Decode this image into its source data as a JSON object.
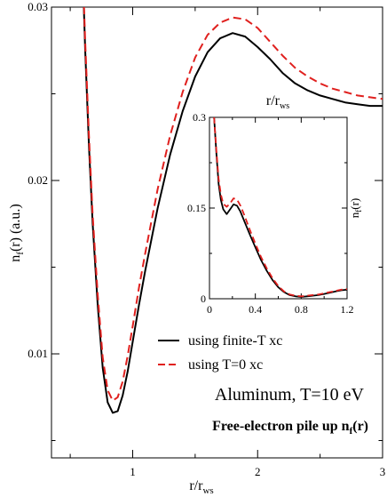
{
  "chart_data": [
    {
      "type": "line",
      "panel": "main",
      "xlabel": "r/r",
      "xlabel_sub": "ws",
      "ylabel": "n",
      "ylabel_sub": "f",
      "ylabel_rest": "(r) (a.u.)",
      "xlim": [
        0.35,
        3.0
      ],
      "ylim": [
        0.004,
        0.03
      ],
      "xticks": [
        1,
        2,
        3
      ],
      "xtick_labels": [
        "1",
        "2",
        "3"
      ],
      "yticks": [
        0.01,
        0.02,
        0.03
      ],
      "ytick_labels": [
        "0.01",
        "0.02",
        "0.03"
      ],
      "grid": false,
      "legend_position": "bottom-right",
      "series": [
        {
          "name": "using finite-T xc",
          "color": "#000000",
          "dash": "solid",
          "x": [
            0.6,
            0.62,
            0.65,
            0.68,
            0.72,
            0.76,
            0.8,
            0.84,
            0.88,
            0.92,
            0.96,
            1.0,
            1.05,
            1.1,
            1.2,
            1.3,
            1.4,
            1.5,
            1.6,
            1.7,
            1.8,
            1.9,
            2.0,
            2.1,
            2.2,
            2.3,
            2.4,
            2.5,
            2.6,
            2.7,
            2.8,
            2.9,
            3.0
          ],
          "y": [
            0.032,
            0.0275,
            0.022,
            0.0175,
            0.0128,
            0.0092,
            0.0072,
            0.0066,
            0.0067,
            0.0076,
            0.009,
            0.0107,
            0.0128,
            0.0148,
            0.0184,
            0.0215,
            0.024,
            0.026,
            0.0274,
            0.0282,
            0.0285,
            0.0283,
            0.0277,
            0.027,
            0.0262,
            0.0256,
            0.0252,
            0.0249,
            0.0247,
            0.0245,
            0.0244,
            0.0243,
            0.0243
          ]
        },
        {
          "name": "using T=0 xc",
          "color": "#e0201e",
          "dash": "dashed",
          "x": [
            0.6,
            0.62,
            0.65,
            0.68,
            0.72,
            0.76,
            0.8,
            0.84,
            0.88,
            0.92,
            0.96,
            1.0,
            1.05,
            1.1,
            1.2,
            1.3,
            1.4,
            1.5,
            1.6,
            1.7,
            1.8,
            1.9,
            2.0,
            2.1,
            2.2,
            2.3,
            2.4,
            2.5,
            2.6,
            2.7,
            2.8,
            2.9,
            3.0
          ],
          "y": [
            0.0322,
            0.028,
            0.0226,
            0.018,
            0.0134,
            0.0098,
            0.0079,
            0.0073,
            0.0075,
            0.0084,
            0.0099,
            0.0116,
            0.0138,
            0.0158,
            0.0195,
            0.0226,
            0.0251,
            0.0271,
            0.0284,
            0.0291,
            0.0294,
            0.0293,
            0.0288,
            0.028,
            0.0272,
            0.0265,
            0.026,
            0.0256,
            0.0253,
            0.0251,
            0.0249,
            0.0248,
            0.0247
          ]
        }
      ],
      "annotations": {
        "material": "Aluminum,  T=10 eV",
        "caption_main": "Free-electron pile up n",
        "caption_sub": "f",
        "caption_rest": "(r)"
      }
    },
    {
      "type": "line",
      "panel": "inset",
      "xlabel": "r/r",
      "xlabel_sub": "ws",
      "ylabel": "n",
      "ylabel_sub": "f",
      "ylabel_rest": "(r)",
      "xlim": [
        0,
        1.2
      ],
      "ylim": [
        0,
        0.3
      ],
      "xticks": [
        0,
        0.4,
        0.8,
        1.2
      ],
      "xtick_labels": [
        "0",
        "0.4",
        "0.8",
        "1.2"
      ],
      "yticks": [
        0,
        0.15,
        0.3
      ],
      "ytick_labels": [
        "0",
        "0.15",
        "0.3"
      ],
      "series": [
        {
          "name": "using finite-T xc",
          "color": "#000000",
          "dash": "solid",
          "x": [
            0.04,
            0.06,
            0.08,
            0.1,
            0.12,
            0.15,
            0.18,
            0.21,
            0.24,
            0.27,
            0.3,
            0.35,
            0.4,
            0.45,
            0.5,
            0.55,
            0.6,
            0.65,
            0.7,
            0.75,
            0.8,
            0.85,
            0.9,
            0.95,
            1.0,
            1.05,
            1.1,
            1.15,
            1.2
          ],
          "y": [
            0.3,
            0.24,
            0.19,
            0.163,
            0.148,
            0.14,
            0.148,
            0.156,
            0.154,
            0.144,
            0.13,
            0.107,
            0.085,
            0.064,
            0.046,
            0.031,
            0.019,
            0.011,
            0.006,
            0.004,
            0.003,
            0.004,
            0.005,
            0.006,
            0.008,
            0.01,
            0.012,
            0.014,
            0.015
          ]
        },
        {
          "name": "using T=0 xc",
          "color": "#e0201e",
          "dash": "dashed",
          "x": [
            0.04,
            0.06,
            0.08,
            0.1,
            0.12,
            0.15,
            0.18,
            0.21,
            0.24,
            0.27,
            0.3,
            0.35,
            0.4,
            0.45,
            0.5,
            0.55,
            0.6,
            0.65,
            0.7,
            0.75,
            0.8,
            0.85,
            0.9,
            0.95,
            1.0,
            1.05,
            1.1,
            1.15,
            1.2
          ],
          "y": [
            0.3,
            0.245,
            0.198,
            0.172,
            0.157,
            0.152,
            0.158,
            0.166,
            0.164,
            0.154,
            0.14,
            0.115,
            0.091,
            0.069,
            0.05,
            0.034,
            0.021,
            0.012,
            0.007,
            0.005,
            0.004,
            0.005,
            0.006,
            0.007,
            0.009,
            0.011,
            0.013,
            0.015,
            0.016
          ]
        }
      ]
    }
  ]
}
